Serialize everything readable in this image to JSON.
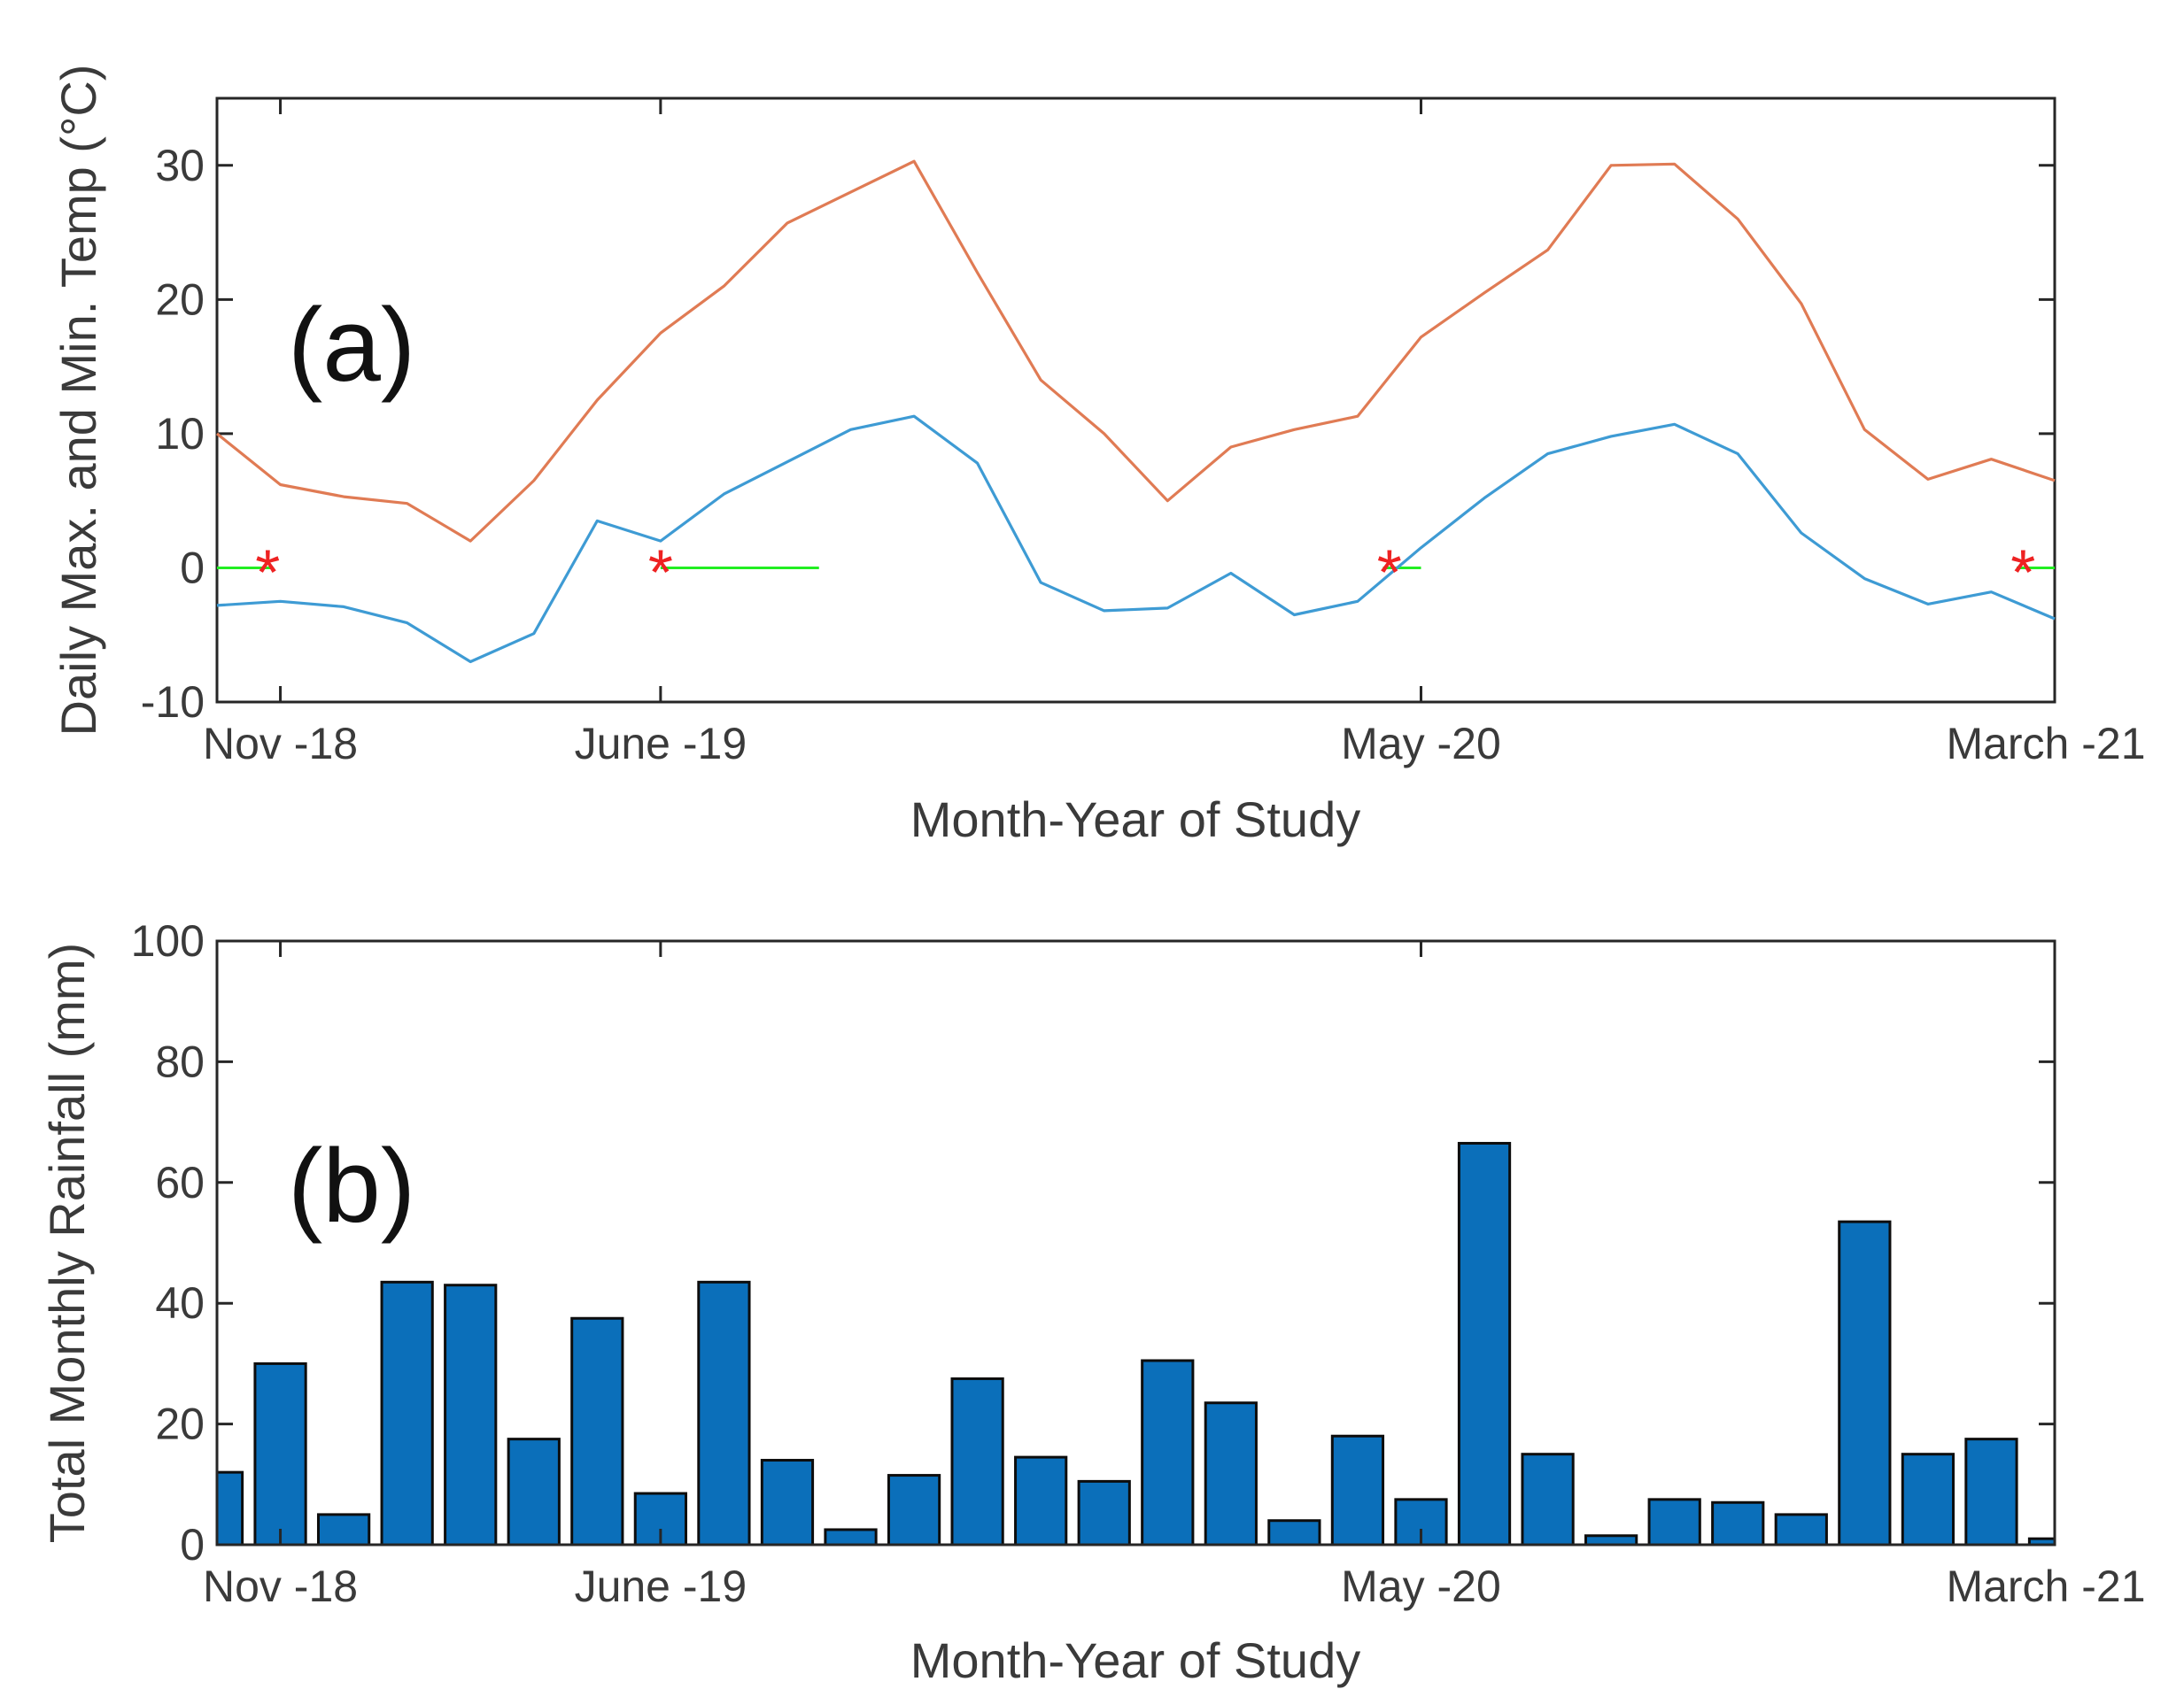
{
  "chart_data": [
    {
      "id": "a",
      "type": "line",
      "panel_label": "(a)",
      "xlabel": "Month-Year of Study",
      "ylabel": "Daily Max. and Min. Temp (°C)",
      "ylim": [
        -10,
        35
      ],
      "yticks": [
        -10,
        0,
        10,
        20,
        30
      ],
      "xlim": [
        0,
        29
      ],
      "xticks": [
        {
          "x": 1,
          "label": "Nov -18"
        },
        {
          "x": 7,
          "label": "June -19"
        },
        {
          "x": 19,
          "label": "May -20"
        },
        {
          "x": 29,
          "label": "March -21"
        }
      ],
      "x": [
        0,
        1,
        2,
        3,
        4,
        5,
        6,
        7,
        8,
        9,
        10,
        11,
        12,
        13,
        14,
        15,
        16,
        17,
        18,
        19,
        20,
        21,
        22,
        23,
        24,
        25,
        26,
        27,
        28,
        29
      ],
      "series": [
        {
          "name": "Max temperature",
          "color": "#e07b54",
          "values": [
            10,
            6.2,
            5.3,
            4.8,
            2,
            6.5,
            12.5,
            17.5,
            21,
            25.7,
            28,
            30.3,
            22,
            14,
            10,
            5,
            9,
            10.3,
            11.3,
            17.2,
            20.5,
            23.7,
            30,
            30.1,
            26,
            19.7,
            10.3,
            6.6,
            8.1,
            6.5
          ]
        },
        {
          "name": "Min temperature",
          "color": "#3e9bd4",
          "values": [
            -2.8,
            -2.5,
            -2.9,
            -4.1,
            -7,
            -4.9,
            3.5,
            2,
            5.5,
            7.9,
            10.3,
            11.3,
            7.8,
            -1.1,
            -3.2,
            -3,
            -0.4,
            -3.5,
            -2.5,
            1.5,
            5.2,
            8.5,
            9.8,
            10.7,
            8.5,
            2.6,
            -0.8,
            -2.7,
            -1.8,
            -3.8
          ]
        }
      ],
      "freezing_segments": [
        {
          "x0": 0,
          "x1": 0.85
        },
        {
          "x0": 7,
          "x1": 9.5
        },
        {
          "x0": 18.4,
          "x1": 19
        },
        {
          "x0": 28.4,
          "x1": 29
        }
      ],
      "freezing_color": "#22ee22",
      "markers": [
        {
          "x": 0.8,
          "y": 0
        },
        {
          "x": 7,
          "y": 0
        },
        {
          "x": 18.5,
          "y": 0
        },
        {
          "x": 28.5,
          "y": 0
        }
      ],
      "marker_symbol": "*",
      "marker_color": "#ee2222"
    },
    {
      "id": "b",
      "type": "bar",
      "panel_label": "(b)",
      "xlabel": "Month-Year of Study",
      "ylabel": "Total Monthly Rainfall (mm)",
      "ylim": [
        0,
        100
      ],
      "yticks": [
        0,
        20,
        40,
        60,
        80,
        100
      ],
      "xlim": [
        0,
        29
      ],
      "xticks": [
        {
          "x": 1,
          "label": "Nov -18"
        },
        {
          "x": 7,
          "label": "June -19"
        },
        {
          "x": 19,
          "label": "May -20"
        },
        {
          "x": 29,
          "label": "March -21"
        }
      ],
      "x": [
        0,
        1,
        2,
        3,
        4,
        5,
        6,
        7,
        8,
        9,
        10,
        11,
        12,
        13,
        14,
        15,
        16,
        17,
        18,
        19,
        20,
        21,
        22,
        23,
        24,
        25,
        26,
        27,
        28,
        29
      ],
      "bar_color": "#0b6fba",
      "values": [
        12,
        30,
        5,
        43.5,
        43,
        17.5,
        37.5,
        8.5,
        43.5,
        14,
        2.5,
        11.5,
        27.5,
        14.5,
        10.5,
        30.5,
        23.5,
        4,
        18,
        7.5,
        66.5,
        15,
        1.5,
        7.5,
        7,
        5,
        53.5,
        15,
        17.5,
        1
      ]
    }
  ]
}
